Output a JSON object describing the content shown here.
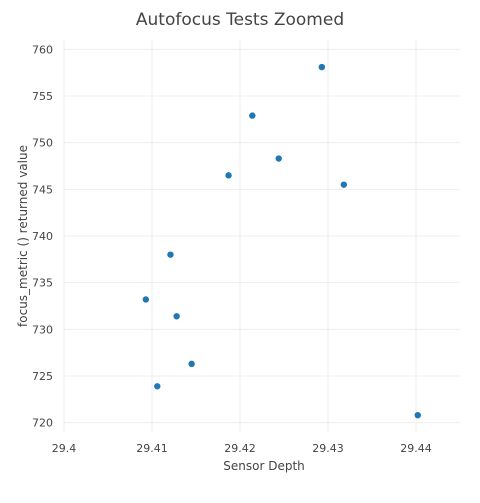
{
  "chart_data": {
    "type": "scatter",
    "title": "Autofocus Tests Zoomed",
    "xlabel": "Sensor Depth",
    "ylabel": "focus_metric () returned value",
    "xlim": [
      29.4,
      29.445
    ],
    "ylim": [
      719,
      761
    ],
    "x_ticks": [
      29.4,
      29.41,
      29.42,
      29.43,
      29.44
    ],
    "x_tick_labels": [
      "29.4",
      "29.41",
      "29.42",
      "29.43",
      "29.44"
    ],
    "y_ticks": [
      720,
      725,
      730,
      735,
      740,
      745,
      750,
      755,
      760
    ],
    "y_tick_labels": [
      "720",
      "725",
      "730",
      "735",
      "740",
      "745",
      "750",
      "755",
      "760"
    ],
    "grid": true,
    "marker_color": "#1f77b4",
    "grid_color": "#eeeeee",
    "points": [
      {
        "x": 29.4293,
        "y": 758.1
      },
      {
        "x": 29.4214,
        "y": 752.9
      },
      {
        "x": 29.4244,
        "y": 748.3
      },
      {
        "x": 29.4187,
        "y": 746.5
      },
      {
        "x": 29.4318,
        "y": 745.5
      },
      {
        "x": 29.4121,
        "y": 738.0
      },
      {
        "x": 29.4093,
        "y": 733.2
      },
      {
        "x": 29.4128,
        "y": 731.4
      },
      {
        "x": 29.4145,
        "y": 726.3
      },
      {
        "x": 29.4106,
        "y": 723.9
      },
      {
        "x": 29.4402,
        "y": 720.8
      }
    ]
  }
}
